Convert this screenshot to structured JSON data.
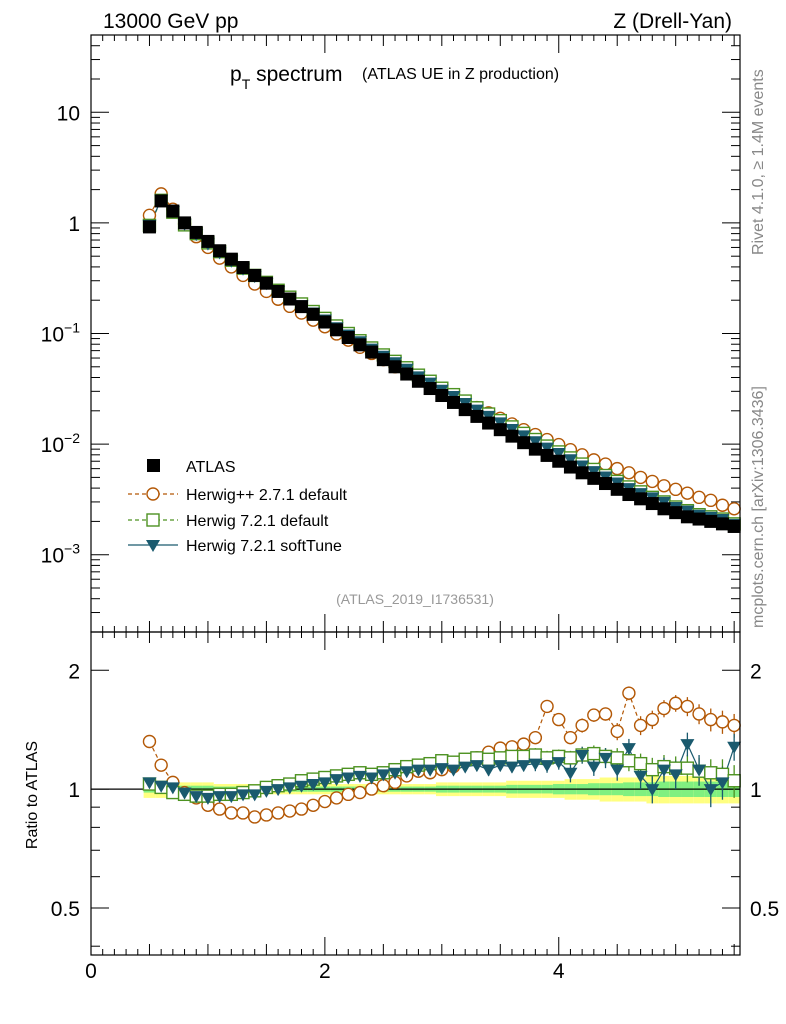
{
  "header": {
    "left": "13000 GeV pp",
    "right": "Z (Drell-Yan)"
  },
  "title": {
    "main_p": "p",
    "main_sub": "T",
    "main_rest": " spectrum",
    "sub": "(ATLAS UE in Z production)"
  },
  "side_labels": {
    "rivet": "Rivet 4.1.0, ≥ 1.4M events",
    "mcplots": "mcplots.cern.ch [arXiv:1306.3436]"
  },
  "analysis_id": "(ATLAS_2019_I1736531)",
  "colors": {
    "atlas": "#000000",
    "herwigpp": "#b35806",
    "herwig721": "#4d9221",
    "softtune": "#1a5a6e",
    "band_yellow": "#ffff80",
    "band_green": "#80f080"
  },
  "legend": {
    "atlas": "ATLAS",
    "herwigpp": "Herwig++ 2.7.1 default",
    "herwig721": "Herwig 7.2.1 default",
    "softtune": "Herwig 7.2.1 softTune"
  },
  "ratio_ylabel": "Ratio to ATLAS",
  "chart_data": [
    {
      "type": "scatter",
      "panel": "main",
      "yscale": "log",
      "xlim": [
        0,
        5.55
      ],
      "ylim": [
        0.0002,
        50
      ],
      "yticks": [
        {
          "v": 10,
          "base": "10",
          "exp": ""
        },
        {
          "v": 1,
          "base": "1",
          "exp": ""
        },
        {
          "v": 0.1,
          "base": "10",
          "exp": "−1"
        },
        {
          "v": 0.01,
          "base": "10",
          "exp": "−2"
        },
        {
          "v": 0.001,
          "base": "10",
          "exp": "−3"
        }
      ],
      "x": [
        0.5,
        0.6,
        0.7,
        0.8,
        0.9,
        1.0,
        1.1,
        1.2,
        1.3,
        1.4,
        1.5,
        1.6,
        1.7,
        1.8,
        1.9,
        2.0,
        2.1,
        2.2,
        2.3,
        2.4,
        2.5,
        2.6,
        2.7,
        2.8,
        2.9,
        3.0,
        3.1,
        3.2,
        3.3,
        3.4,
        3.5,
        3.6,
        3.7,
        3.8,
        3.9,
        4.0,
        4.1,
        4.2,
        4.3,
        4.4,
        4.5,
        4.6,
        4.7,
        4.8,
        4.9,
        5.0,
        5.1,
        5.2,
        5.3,
        5.4,
        5.5
      ],
      "series": [
        {
          "name": "ATLAS",
          "key": "atlas",
          "values": [
            0.92,
            1.58,
            1.28,
            1.0,
            0.82,
            0.68,
            0.56,
            0.47,
            0.395,
            0.335,
            0.285,
            0.24,
            0.205,
            0.175,
            0.149,
            0.127,
            0.108,
            0.092,
            0.079,
            0.068,
            0.058,
            0.05,
            0.043,
            0.037,
            0.0318,
            0.0275,
            0.0238,
            0.0205,
            0.0178,
            0.0155,
            0.0135,
            0.0118,
            0.0103,
            0.009,
            0.0079,
            0.007,
            0.0062,
            0.0055,
            0.0049,
            0.0044,
            0.0039,
            0.0035,
            0.0032,
            0.0029,
            0.0026,
            0.0024,
            0.0022,
            0.0021,
            0.002,
            0.0019,
            0.0018
          ]
        },
        {
          "name": "Herwig++ 2.7.1 default",
          "key": "herwigpp",
          "values": [
            1.17,
            1.83,
            1.33,
            0.98,
            0.75,
            0.6,
            0.48,
            0.4,
            0.335,
            0.28,
            0.24,
            0.204,
            0.176,
            0.153,
            0.132,
            0.115,
            0.099,
            0.087,
            0.075,
            0.066,
            0.058,
            0.05,
            0.045,
            0.04,
            0.035,
            0.031,
            0.027,
            0.0242,
            0.0214,
            0.0192,
            0.0171,
            0.0152,
            0.0135,
            0.0122,
            0.011,
            0.0099,
            0.0089,
            0.008,
            0.0072,
            0.0066,
            0.006,
            0.0055,
            0.005,
            0.0046,
            0.0042,
            0.0039,
            0.0036,
            0.0033,
            0.0031,
            0.0028,
            0.0026
          ]
        },
        {
          "name": "Herwig 7.2.1 default",
          "key": "herwig721",
          "values": [
            0.95,
            1.6,
            1.25,
            0.96,
            0.8,
            0.66,
            0.55,
            0.46,
            0.39,
            0.335,
            0.29,
            0.246,
            0.213,
            0.185,
            0.158,
            0.137,
            0.117,
            0.1,
            0.086,
            0.074,
            0.064,
            0.056,
            0.049,
            0.042,
            0.037,
            0.032,
            0.028,
            0.0245,
            0.0213,
            0.0187,
            0.0163,
            0.0143,
            0.0125,
            0.011,
            0.0096,
            0.0085,
            0.0075,
            0.0066,
            0.0059,
            0.0052,
            0.0046,
            0.0041,
            0.0037,
            0.0033,
            0.003,
            0.0027,
            0.0025,
            0.0023,
            0.0022,
            0.0021,
            0.0019
          ]
        },
        {
          "name": "Herwig 7.2.1 softTune",
          "key": "softtune",
          "values": [
            0.96,
            1.62,
            1.28,
            0.98,
            0.79,
            0.65,
            0.54,
            0.455,
            0.385,
            0.33,
            0.285,
            0.242,
            0.208,
            0.18,
            0.155,
            0.134,
            0.114,
            0.098,
            0.085,
            0.073,
            0.063,
            0.055,
            0.048,
            0.041,
            0.036,
            0.031,
            0.0272,
            0.0235,
            0.0205,
            0.018,
            0.0157,
            0.0137,
            0.012,
            0.0106,
            0.0093,
            0.0083,
            0.0073,
            0.0064,
            0.0057,
            0.0051,
            0.0045,
            0.004,
            0.0036,
            0.0033,
            0.003,
            0.0027,
            0.0025,
            0.0023,
            0.0022,
            0.0021,
            0.0019
          ]
        }
      ]
    },
    {
      "type": "scatter",
      "panel": "ratio",
      "yscale": "log",
      "xlim": [
        0,
        5.55
      ],
      "ylim": [
        0.38,
        2.5
      ],
      "yticks": [
        {
          "v": 2,
          "label": "2"
        },
        {
          "v": 1,
          "label": "1"
        },
        {
          "v": 0.5,
          "label": "0.5"
        }
      ],
      "xticks": [
        {
          "v": 0,
          "label": "0"
        },
        {
          "v": 2,
          "label": "2"
        },
        {
          "v": 4,
          "label": "4"
        }
      ],
      "x": [
        0.5,
        0.6,
        0.7,
        0.8,
        0.9,
        1.0,
        1.1,
        1.2,
        1.3,
        1.4,
        1.5,
        1.6,
        1.7,
        1.8,
        1.9,
        2.0,
        2.1,
        2.2,
        2.3,
        2.4,
        2.5,
        2.6,
        2.7,
        2.8,
        2.9,
        3.0,
        3.1,
        3.2,
        3.3,
        3.4,
        3.5,
        3.6,
        3.7,
        3.8,
        3.9,
        4.0,
        4.1,
        4.2,
        4.3,
        4.4,
        4.5,
        4.6,
        4.7,
        4.8,
        4.9,
        5.0,
        5.1,
        5.2,
        5.3,
        5.4,
        5.5
      ],
      "band_yellow": [
        0.05,
        0.05,
        0.04,
        0.04,
        0.04,
        0.04,
        0.03,
        0.03,
        0.03,
        0.03,
        0.03,
        0.03,
        0.03,
        0.03,
        0.03,
        0.03,
        0.03,
        0.03,
        0.03,
        0.03,
        0.03,
        0.03,
        0.03,
        0.03,
        0.03,
        0.04,
        0.04,
        0.04,
        0.04,
        0.04,
        0.04,
        0.05,
        0.05,
        0.05,
        0.05,
        0.05,
        0.06,
        0.06,
        0.06,
        0.07,
        0.07,
        0.07,
        0.07,
        0.08,
        0.08,
        0.08,
        0.08,
        0.08,
        0.08,
        0.08,
        0.08
      ],
      "band_green": [
        0.02,
        0.02,
        0.02,
        0.02,
        0.02,
        0.02,
        0.015,
        0.015,
        0.015,
        0.015,
        0.015,
        0.015,
        0.015,
        0.015,
        0.015,
        0.015,
        0.015,
        0.015,
        0.015,
        0.015,
        0.015,
        0.015,
        0.015,
        0.015,
        0.015,
        0.02,
        0.02,
        0.02,
        0.02,
        0.02,
        0.02,
        0.025,
        0.025,
        0.025,
        0.025,
        0.03,
        0.03,
        0.03,
        0.035,
        0.035,
        0.035,
        0.04,
        0.04,
        0.04,
        0.045,
        0.045,
        0.045,
        0.045,
        0.045,
        0.045,
        0.045
      ],
      "series": [
        {
          "name": "Herwig++ 2.7.1 default",
          "key": "herwigpp",
          "values": [
            1.32,
            1.15,
            1.04,
            0.98,
            0.95,
            0.91,
            0.89,
            0.87,
            0.87,
            0.85,
            0.86,
            0.87,
            0.88,
            0.89,
            0.91,
            0.93,
            0.95,
            0.97,
            0.98,
            1.0,
            1.02,
            1.04,
            1.08,
            1.11,
            1.1,
            1.12,
            1.14,
            1.18,
            1.2,
            1.24,
            1.27,
            1.28,
            1.3,
            1.35,
            1.62,
            1.5,
            1.35,
            1.45,
            1.54,
            1.55,
            1.4,
            1.75,
            1.45,
            1.5,
            1.6,
            1.65,
            1.62,
            1.55,
            1.5,
            1.48,
            1.45
          ],
          "errors": [
            0.02,
            0.02,
            0.02,
            0.02,
            0.02,
            0.02,
            0.02,
            0.02,
            0.02,
            0.02,
            0.02,
            0.02,
            0.02,
            0.02,
            0.02,
            0.02,
            0.02,
            0.02,
            0.02,
            0.02,
            0.02,
            0.02,
            0.03,
            0.03,
            0.03,
            0.03,
            0.03,
            0.03,
            0.03,
            0.04,
            0.04,
            0.04,
            0.04,
            0.05,
            0.05,
            0.05,
            0.05,
            0.06,
            0.06,
            0.06,
            0.07,
            0.07,
            0.08,
            0.08,
            0.08,
            0.08,
            0.09,
            0.09,
            0.1,
            0.1,
            0.1
          ]
        },
        {
          "name": "Herwig 7.2.1 default",
          "key": "herwig721",
          "values": [
            1.03,
            1.01,
            0.98,
            0.97,
            0.96,
            0.96,
            0.97,
            0.97,
            0.98,
            0.99,
            1.01,
            1.02,
            1.03,
            1.05,
            1.06,
            1.07,
            1.08,
            1.09,
            1.1,
            1.09,
            1.1,
            1.12,
            1.14,
            1.15,
            1.16,
            1.18,
            1.17,
            1.19,
            1.2,
            1.19,
            1.2,
            1.21,
            1.21,
            1.22,
            1.2,
            1.21,
            1.2,
            1.22,
            1.23,
            1.21,
            1.2,
            1.18,
            1.16,
            1.12,
            1.14,
            1.13,
            1.13,
            1.11,
            1.1,
            1.09,
            1.05
          ],
          "errors": [
            0.02,
            0.02,
            0.02,
            0.02,
            0.02,
            0.02,
            0.02,
            0.02,
            0.02,
            0.02,
            0.02,
            0.02,
            0.02,
            0.02,
            0.02,
            0.02,
            0.02,
            0.02,
            0.02,
            0.02,
            0.02,
            0.02,
            0.03,
            0.03,
            0.03,
            0.03,
            0.03,
            0.03,
            0.04,
            0.04,
            0.04,
            0.04,
            0.04,
            0.05,
            0.05,
            0.05,
            0.05,
            0.06,
            0.06,
            0.06,
            0.07,
            0.07,
            0.07,
            0.08,
            0.08,
            0.08,
            0.09,
            0.09,
            0.09,
            0.1,
            0.1
          ]
        },
        {
          "name": "Herwig 7.2.1 softTune",
          "key": "softtune",
          "values": [
            1.04,
            1.02,
            1.01,
            0.98,
            0.96,
            0.95,
            0.96,
            0.96,
            0.97,
            0.97,
            0.99,
            1.0,
            1.01,
            1.02,
            1.03,
            1.04,
            1.06,
            1.07,
            1.08,
            1.07,
            1.09,
            1.1,
            1.11,
            1.12,
            1.12,
            1.13,
            1.12,
            1.14,
            1.15,
            1.12,
            1.15,
            1.14,
            1.15,
            1.16,
            1.15,
            1.17,
            1.1,
            1.22,
            1.14,
            1.2,
            1.12,
            1.27,
            1.08,
            1.0,
            1.12,
            1.09,
            1.3,
            1.12,
            1.0,
            1.04,
            1.28
          ],
          "errors": [
            0.02,
            0.02,
            0.02,
            0.02,
            0.02,
            0.02,
            0.02,
            0.02,
            0.02,
            0.02,
            0.02,
            0.02,
            0.02,
            0.02,
            0.02,
            0.02,
            0.02,
            0.02,
            0.02,
            0.02,
            0.02,
            0.02,
            0.03,
            0.03,
            0.03,
            0.03,
            0.03,
            0.03,
            0.04,
            0.04,
            0.04,
            0.04,
            0.04,
            0.05,
            0.05,
            0.05,
            0.06,
            0.06,
            0.06,
            0.07,
            0.07,
            0.07,
            0.08,
            0.08,
            0.08,
            0.09,
            0.09,
            0.1,
            0.1,
            0.1,
            0.1
          ]
        }
      ]
    }
  ]
}
